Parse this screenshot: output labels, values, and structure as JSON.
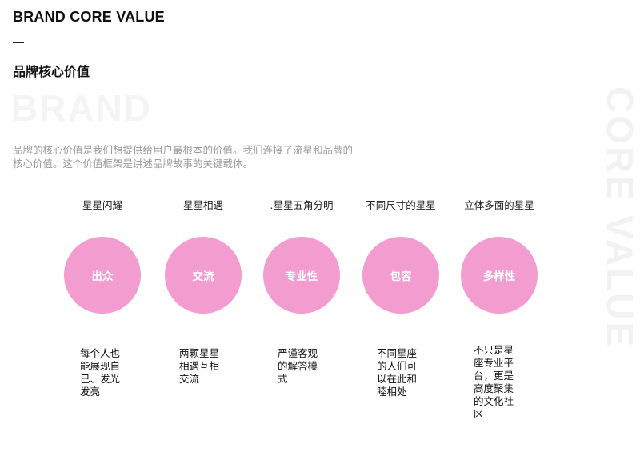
{
  "header": {
    "en_title": "BRAND CORE VALUE",
    "dash": "—",
    "cn_title": "品牌核心价值"
  },
  "watermark": {
    "brand": "BRAND",
    "core_value": "CORE VALUE"
  },
  "intro": "品牌的核心价值是我们想提供给用户最根本的价值。我们连接了流星和品牌的核心价值。这个价值框架是讲述品牌故事的关键载体。",
  "accent_color": "#f39ccf",
  "values": [
    {
      "heading": "星星闪耀",
      "keyword": "出众",
      "description": "每个人也能展现自己、发光发亮"
    },
    {
      "heading": "星星相遇",
      "keyword": "交流",
      "description": "两颗星星相遇互相交流"
    },
    {
      "heading": ".星星五角分明",
      "keyword": "专业性",
      "description": "严谨客观的解答模式"
    },
    {
      "heading": "不同尺寸的星星",
      "keyword": "包容",
      "description": "不同星座的人们可以在此和睦相处"
    },
    {
      "heading": "立体多面的星星",
      "keyword": "多样性",
      "description": "不只是星座专业平台，更是高度聚集的文化社区"
    }
  ]
}
